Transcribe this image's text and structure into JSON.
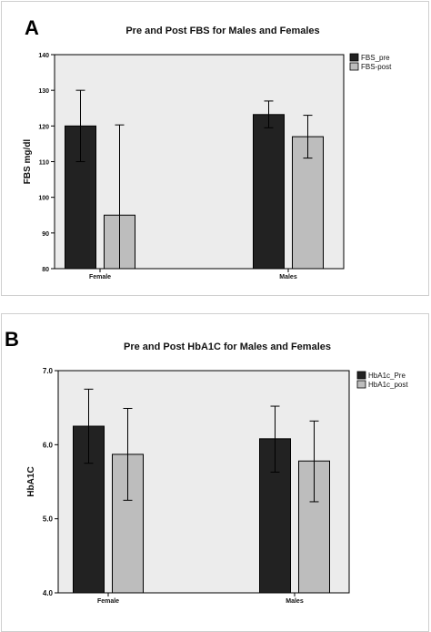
{
  "panels": [
    {
      "letter": "A",
      "chart_index": 0
    },
    {
      "letter": "B",
      "chart_index": 1
    }
  ],
  "chart_data": [
    {
      "type": "bar",
      "title": "Pre and Post FBS for Males and Females",
      "xlabel": "",
      "ylabel": "FBS mg/dl",
      "categories": [
        "Female",
        "Males"
      ],
      "ylim": [
        80,
        140
      ],
      "yticks": [
        "80",
        "90",
        "100",
        "110",
        "120",
        "130",
        "140"
      ],
      "grid": false,
      "legend_position": "right",
      "series": [
        {
          "name": "FBS_pre",
          "color": "#222222",
          "values": [
            120,
            123.2
          ],
          "err_low": [
            110,
            119.5
          ],
          "err_high": [
            130,
            127
          ]
        },
        {
          "name": "FBS-post",
          "color": "#bdbdbd",
          "values": [
            95,
            117
          ],
          "err_low": [
            80,
            111
          ],
          "err_high": [
            120.3,
            123
          ]
        }
      ]
    },
    {
      "type": "bar",
      "title": "Pre and Post HbA1C for Males and Females",
      "xlabel": "",
      "ylabel": "HbA1C",
      "categories": [
        "Female",
        "Males"
      ],
      "ylim": [
        4.0,
        7.0
      ],
      "yticks": [
        "4.0",
        "5.0",
        "6.0",
        "7.0"
      ],
      "grid": false,
      "legend_position": "right",
      "series": [
        {
          "name": "HbA1c_Pre",
          "color": "#222222",
          "values": [
            6.25,
            6.08
          ],
          "err_low": [
            5.75,
            5.63
          ],
          "err_high": [
            6.75,
            6.52
          ]
        },
        {
          "name": "HbA1c_post",
          "color": "#bdbdbd",
          "values": [
            5.87,
            5.78
          ],
          "err_low": [
            5.25,
            5.23
          ],
          "err_high": [
            6.49,
            6.32
          ]
        }
      ]
    }
  ]
}
